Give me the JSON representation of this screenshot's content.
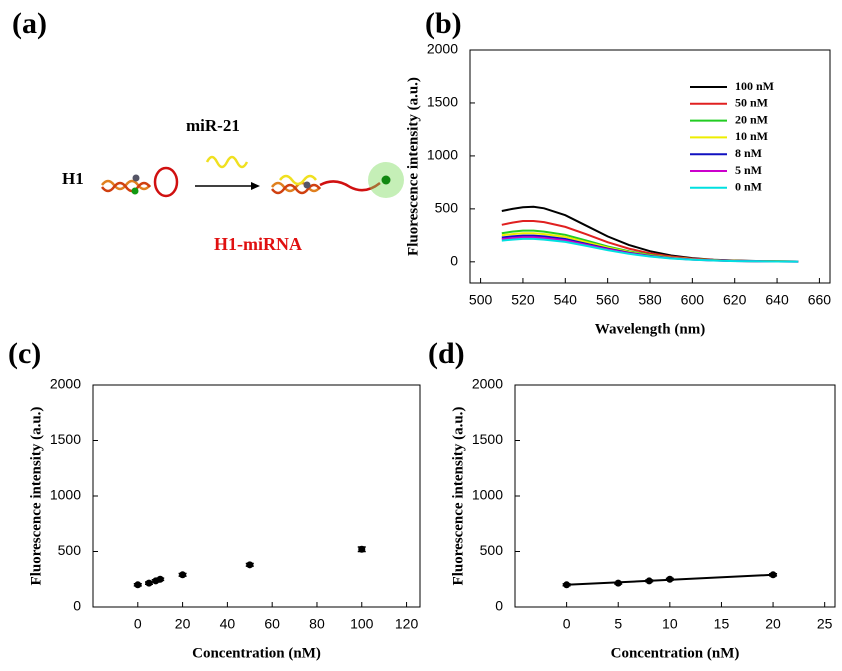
{
  "diagram": {
    "panel": "(a)",
    "labels": [
      "H1",
      "miR-21",
      "H1-miRNA"
    ]
  },
  "chart_data": [
    {
      "panel": "(b)",
      "type": "line",
      "xlabel": "Wavelength (nm)",
      "ylabel": "Fluorescence intensity (a.u.)",
      "x": [
        510,
        515,
        520,
        525,
        530,
        540,
        550,
        560,
        570,
        580,
        590,
        600,
        610,
        620,
        630,
        640,
        650
      ],
      "series": [
        {
          "name": "100 nM",
          "color": "#000000",
          "values": [
            480,
            500,
            515,
            520,
            505,
            440,
            340,
            240,
            160,
            100,
            60,
            35,
            20,
            12,
            8,
            5,
            3
          ]
        },
        {
          "name": "50 nM",
          "color": "#e02020",
          "values": [
            350,
            370,
            385,
            385,
            375,
            330,
            260,
            185,
            125,
            80,
            50,
            30,
            18,
            10,
            7,
            4,
            3
          ]
        },
        {
          "name": "20 nM",
          "color": "#22cc22",
          "values": [
            270,
            285,
            295,
            295,
            285,
            255,
            200,
            145,
            100,
            65,
            40,
            25,
            15,
            9,
            6,
            4,
            3
          ]
        },
        {
          "name": "10 nM",
          "color": "#eeee00",
          "values": [
            250,
            262,
            270,
            270,
            262,
            235,
            185,
            135,
            93,
            60,
            38,
            24,
            14,
            9,
            6,
            4,
            3
          ]
        },
        {
          "name": "8 nM",
          "color": "#1010c0",
          "values": [
            230,
            240,
            248,
            248,
            240,
            215,
            170,
            125,
            86,
            56,
            35,
            22,
            13,
            8,
            5,
            3,
            2
          ]
        },
        {
          "name": "5 nM",
          "color": "#cc00cc",
          "values": [
            215,
            225,
            232,
            232,
            225,
            202,
            160,
            118,
            81,
            53,
            33,
            21,
            12,
            8,
            5,
            3,
            2
          ]
        },
        {
          "name": "0 nM",
          "color": "#00e0e0",
          "values": [
            200,
            210,
            216,
            216,
            210,
            188,
            150,
            110,
            76,
            50,
            31,
            20,
            12,
            7,
            5,
            3,
            2
          ]
        }
      ],
      "xlim": [
        495,
        665
      ],
      "xticks": [
        500,
        520,
        540,
        560,
        580,
        600,
        620,
        640,
        660
      ],
      "ylim": [
        -200,
        2000
      ],
      "yticks": [
        0,
        500,
        1000,
        1500,
        2000
      ]
    },
    {
      "panel": "(c)",
      "type": "scatter",
      "xlabel": "Concentration (nM)",
      "ylabel": "Fluorescence intensity (a.u.)",
      "x": [
        0,
        5,
        8,
        10,
        20,
        50,
        100
      ],
      "series": [
        {
          "color": "#000000",
          "values": [
            200,
            215,
            235,
            250,
            290,
            380,
            520
          ],
          "errors": [
            10,
            10,
            10,
            10,
            12,
            12,
            20
          ]
        }
      ],
      "xlim": [
        -20,
        126
      ],
      "xticks": [
        0,
        20,
        40,
        60,
        80,
        100,
        120
      ],
      "ylim": [
        0,
        2000
      ],
      "yticks": [
        0,
        500,
        1000,
        1500,
        2000
      ]
    },
    {
      "panel": "(d)",
      "type": "scatter",
      "xlabel": "Concentration (nM)",
      "ylabel": "Fluorescence intensity (a.u.)",
      "x": [
        0,
        5,
        8,
        10,
        20
      ],
      "series": [
        {
          "color": "#000000",
          "values": [
            200,
            215,
            235,
            250,
            290
          ],
          "errors": [
            8,
            8,
            8,
            8,
            10
          ]
        }
      ],
      "fit": {
        "x": [
          0,
          20
        ],
        "values": [
          200,
          290
        ]
      },
      "xlim": [
        -5,
        26
      ],
      "xticks": [
        0,
        5,
        10,
        15,
        20,
        25
      ],
      "ylim": [
        0,
        2000
      ],
      "yticks": [
        0,
        500,
        1000,
        1500,
        2000
      ]
    }
  ]
}
